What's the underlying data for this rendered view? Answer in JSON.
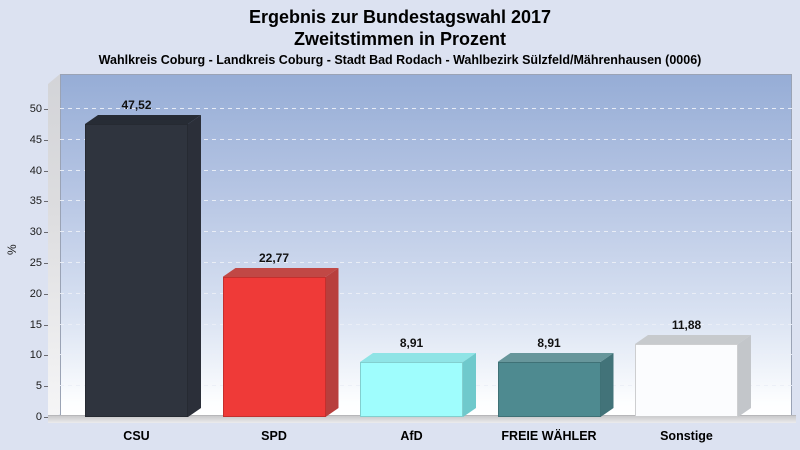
{
  "header": {
    "title_line1": "Ergebnis zur Bundestagswahl 2017",
    "title_line2": "Zweitstimmen in Prozent",
    "subtitle": "Wahlkreis Coburg - Landkreis Coburg - Stadt Bad Rodach - Wahlbezirk Sülzfeld/Mährenhausen (0006)"
  },
  "chart_data": {
    "type": "bar",
    "style": "3d-column",
    "title": "Ergebnis zur Bundestagswahl 2017",
    "subtitle": "Zweitstimmen in Prozent",
    "categories": [
      "CSU",
      "SPD",
      "AfD",
      "FREIE WÄHLER",
      "Sonstige"
    ],
    "values": [
      47.52,
      22.77,
      8.91,
      8.91,
      11.88
    ],
    "value_labels": [
      "47,52",
      "22,77",
      "8,91",
      "8,91",
      "11,88"
    ],
    "xlabel": "",
    "ylabel": "%",
    "ylim": [
      0,
      50
    ],
    "ytick_step": 5,
    "ytick_labels": [
      "0",
      "5",
      "10",
      "15",
      "20",
      "25",
      "30",
      "35",
      "40",
      "45",
      "50"
    ],
    "grid": "dashed horizontal every 5",
    "legend_position": "none",
    "bar_colors": [
      {
        "name": "CSU",
        "front": "#2f343e",
        "top": "#272c35",
        "side": "#2b2f39"
      },
      {
        "name": "SPD",
        "front": "#ef3a38",
        "top": "#c14845",
        "side": "#b83f3d"
      },
      {
        "name": "AfD",
        "front": "#9ffdfd",
        "top": "#8fe4e6",
        "side": "#6fc9cc"
      },
      {
        "name": "FREIE WÄHLER",
        "front": "#4e8a90",
        "top": "#67969b",
        "side": "#427379"
      },
      {
        "name": "Sonstige",
        "front": "#fbfcfe",
        "top": "#c7cacd",
        "side": "#c3c6ca"
      }
    ],
    "colors": {
      "page_background": "#dce2f1",
      "plot_gradient_top": "#96add6",
      "plot_gradient_bottom": "#ffffff",
      "wall_floor_gray": "#d6d6d8",
      "gridline": "#ebeff7",
      "text": "#000000"
    }
  }
}
